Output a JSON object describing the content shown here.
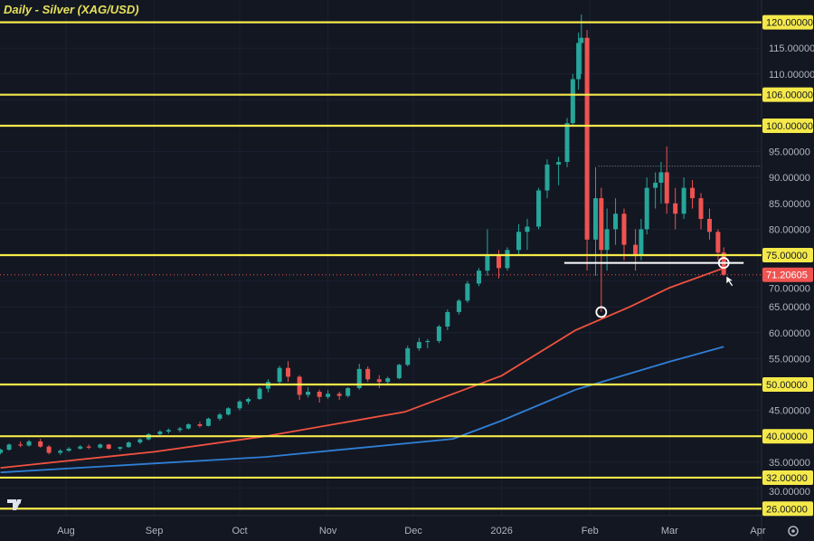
{
  "title": "Daily - Silver (XAG/USD)",
  "colors": {
    "background": "#131722",
    "level": "#f5e94a",
    "bull": "#26a69a",
    "bear": "#ef5350",
    "ma_red": "#f0523f",
    "ma_blue": "#2f7fd6",
    "price": "#f05350",
    "support": "#ffffff"
  },
  "icons": {
    "logo": "tradingview-logo",
    "settings": "gear-icon",
    "cursor": "arrow-cursor-icon"
  },
  "chart_data": {
    "type": "candlestick",
    "title": "Daily - Silver (XAG/USD)",
    "x_ticks": [
      [
        "2025-08-01",
        "Aug"
      ],
      [
        "2025-09-01",
        "Sep"
      ],
      [
        "2025-10-01",
        "Oct"
      ],
      [
        "2025-11-01",
        "Nov"
      ],
      [
        "2025-12-01",
        "Dec"
      ],
      [
        "2026-01-01",
        "2026"
      ],
      [
        "2026-02-01",
        "Feb"
      ],
      [
        "2026-03-01",
        "Mar"
      ],
      [
        "2026-04-01",
        "Apr"
      ]
    ],
    "y_ticks": [
      "30.00000",
      "35.00000",
      "45.00000",
      "55.00000",
      "60.00000",
      "65.00000",
      "70.00000",
      "80.00000",
      "85.00000",
      "90.00000",
      "95.00000",
      "110.00000",
      "115.00000"
    ],
    "ylim": [
      25,
      121.5
    ],
    "last_price": {
      "value": 71.20605,
      "label": "71.20605"
    },
    "levels": [
      {
        "value": 120,
        "label": "120.00000"
      },
      {
        "value": 106,
        "label": "106.00000"
      },
      {
        "value": 100,
        "label": "100.00000"
      },
      {
        "value": 75,
        "label": "75.00000"
      },
      {
        "value": 50,
        "label": "50.00000"
      },
      {
        "value": 40,
        "label": "40.00000"
      },
      {
        "value": 32,
        "label": "32.00000"
      },
      {
        "value": 26,
        "label": "26.00000"
      }
    ],
    "support_line": {
      "value": 73.5,
      "from": "2026-01-23",
      "to": "2026-03-27"
    },
    "dotted_line": {
      "value": 92.2,
      "from": "2026-02-04"
    },
    "circles": [
      [
        "2026-02-05",
        64
      ],
      [
        "2026-03-20",
        73.5
      ]
    ],
    "candles": [
      [
        "2025-07-09",
        36.8,
        37.6,
        36.5,
        37.4
      ],
      [
        "2025-07-12",
        37.4,
        38.6,
        37.2,
        38.4
      ],
      [
        "2025-07-16",
        38.4,
        39,
        37.9,
        38.2
      ],
      [
        "2025-07-19",
        38.2,
        39.3,
        38,
        39
      ],
      [
        "2025-07-23",
        39,
        39.5,
        37.8,
        38
      ],
      [
        "2025-07-26",
        38,
        38.3,
        36.5,
        36.8
      ],
      [
        "2025-07-30",
        36.8,
        37.5,
        36.4,
        37.2
      ],
      [
        "2025-08-02",
        37.2,
        37.9,
        37,
        37.6
      ],
      [
        "2025-08-06",
        37.6,
        38.3,
        37.4,
        38
      ],
      [
        "2025-08-09",
        38,
        38.4,
        37.5,
        37.8
      ],
      [
        "2025-08-13",
        37.8,
        38.6,
        37.6,
        38.4
      ],
      [
        "2025-08-16",
        38.4,
        38.5,
        37.4,
        37.6
      ],
      [
        "2025-08-20",
        37.6,
        38,
        37.2,
        37.9
      ],
      [
        "2025-08-23",
        37.9,
        39,
        37.8,
        38.8
      ],
      [
        "2025-08-27",
        38.8,
        39.6,
        38.5,
        39.4
      ],
      [
        "2025-08-30",
        39.4,
        40.6,
        39.2,
        40.4
      ],
      [
        "2025-09-03",
        40.4,
        41.2,
        40.1,
        40.9
      ],
      [
        "2025-09-06",
        40.9,
        41.5,
        40.5,
        41.2
      ],
      [
        "2025-09-10",
        41.2,
        41.8,
        40.8,
        41.5
      ],
      [
        "2025-09-13",
        41.5,
        42.5,
        41.3,
        42.3
      ],
      [
        "2025-09-17",
        42.3,
        42.8,
        41.7,
        42
      ],
      [
        "2025-09-20",
        42,
        43.6,
        41.9,
        43.4
      ],
      [
        "2025-09-24",
        43.4,
        44.5,
        43,
        44.2
      ],
      [
        "2025-09-27",
        44.2,
        45.6,
        44,
        45.4
      ],
      [
        "2025-10-01",
        45.4,
        47,
        45,
        46.7
      ],
      [
        "2025-10-04",
        46.7,
        47.5,
        46.2,
        47.2
      ],
      [
        "2025-10-08",
        47.2,
        49.5,
        47,
        49.2
      ],
      [
        "2025-10-11",
        49.2,
        51,
        48.5,
        50.5
      ],
      [
        "2025-10-15",
        50.5,
        53.6,
        50.2,
        53.2
      ],
      [
        "2025-10-18",
        53.2,
        54.5,
        50.5,
        51.5
      ],
      [
        "2025-10-22",
        51.5,
        51.8,
        47,
        48
      ],
      [
        "2025-10-25",
        48,
        49.5,
        47.5,
        48.6
      ],
      [
        "2025-10-29",
        48.6,
        49,
        46.5,
        47.6
      ],
      [
        "2025-11-01",
        47.6,
        48.9,
        47.2,
        48.2
      ],
      [
        "2025-11-05",
        48.2,
        48.6,
        47,
        47.8
      ],
      [
        "2025-11-08",
        47.8,
        49.5,
        47.5,
        49.3
      ],
      [
        "2025-11-12",
        49.3,
        54,
        49,
        53
      ],
      [
        "2025-11-15",
        53,
        53.5,
        50.5,
        51
      ],
      [
        "2025-11-19",
        51,
        51.8,
        49.3,
        50.5
      ],
      [
        "2025-11-22",
        50.5,
        51.5,
        49.8,
        51.2
      ],
      [
        "2025-11-26",
        51.2,
        54,
        51,
        53.8
      ],
      [
        "2025-11-29",
        53.8,
        57.5,
        53.5,
        57
      ],
      [
        "2025-12-03",
        57,
        59,
        56.5,
        58.2
      ],
      [
        "2025-12-06",
        58.2,
        58.8,
        57,
        58.4
      ],
      [
        "2025-12-10",
        58.4,
        61.5,
        58,
        61.2
      ],
      [
        "2025-12-13",
        61.2,
        64.5,
        60.5,
        64
      ],
      [
        "2025-12-17",
        64,
        66.5,
        63.5,
        66.2
      ],
      [
        "2025-12-20",
        66.2,
        70,
        65.8,
        69.5
      ],
      [
        "2025-12-24",
        69.5,
        72.5,
        69,
        72
      ],
      [
        "2025-12-27",
        72,
        80,
        71,
        75
      ],
      [
        "2025-12-31",
        75,
        76,
        70.5,
        72.5
      ],
      [
        "2026-01-03",
        72.5,
        76.5,
        72,
        76
      ],
      [
        "2026-01-07",
        76,
        81,
        75,
        79.5
      ],
      [
        "2026-01-10",
        79.5,
        82,
        76,
        80.5
      ],
      [
        "2026-01-14",
        80.5,
        88,
        80,
        87.5
      ],
      [
        "2026-01-17",
        87.5,
        93.5,
        86,
        92.5
      ],
      [
        "2026-01-21",
        92.5,
        94,
        88.5,
        93
      ],
      [
        "2026-01-24",
        93,
        101.5,
        92,
        100.5
      ],
      [
        "2026-01-26",
        100.5,
        110,
        100,
        109
      ],
      [
        "2026-01-28",
        109,
        118,
        107,
        116
      ],
      [
        "2026-01-29",
        116,
        121.5,
        110,
        117
      ],
      [
        "2026-01-31",
        117,
        118.5,
        72,
        78
      ],
      [
        "2026-02-03",
        78,
        92,
        71,
        86
      ],
      [
        "2026-02-05",
        86,
        88,
        64,
        76
      ],
      [
        "2026-02-07",
        76,
        84,
        72,
        80
      ],
      [
        "2026-02-10",
        80,
        86,
        77,
        83
      ],
      [
        "2026-02-13",
        83,
        84,
        74,
        77
      ],
      [
        "2026-02-17",
        77,
        80,
        72,
        75
      ],
      [
        "2026-02-19",
        75,
        82,
        74,
        80
      ],
      [
        "2026-02-21",
        80,
        90,
        79,
        88
      ],
      [
        "2026-02-24",
        88,
        91,
        84,
        89
      ],
      [
        "2026-02-26",
        89,
        93,
        85,
        91
      ],
      [
        "2026-02-28",
        91,
        96,
        83,
        85
      ],
      [
        "2026-03-03",
        85,
        88,
        80,
        83
      ],
      [
        "2026-03-06",
        83,
        90,
        82,
        88
      ],
      [
        "2026-03-09",
        88,
        89.5,
        84,
        86
      ],
      [
        "2026-03-12",
        86,
        87,
        80,
        82
      ],
      [
        "2026-03-15",
        82,
        84,
        78,
        79.5
      ],
      [
        "2026-03-18",
        79.5,
        80,
        74,
        75.5
      ],
      [
        "2026-03-20",
        75.5,
        76.5,
        71,
        71.2
      ]
    ],
    "moving_averages": [
      {
        "color": "red",
        "points": [
          [
            "2025-07-09",
            33.9
          ],
          [
            "2025-09-01",
            37
          ],
          [
            "2025-10-10",
            40
          ],
          [
            "2025-11-28",
            44.7
          ],
          [
            "2026-01-01",
            51.7
          ],
          [
            "2026-01-27",
            60.5
          ],
          [
            "2026-02-15",
            65
          ],
          [
            "2026-03-01",
            68.7
          ],
          [
            "2026-03-20",
            72.5
          ]
        ]
      },
      {
        "color": "blue",
        "points": [
          [
            "2025-07-09",
            33
          ],
          [
            "2025-10-10",
            36
          ],
          [
            "2025-12-15",
            39.5
          ],
          [
            "2026-01-01",
            43
          ],
          [
            "2026-01-27",
            49
          ],
          [
            "2026-03-01",
            54.4
          ],
          [
            "2026-03-20",
            57.3
          ]
        ]
      }
    ]
  }
}
